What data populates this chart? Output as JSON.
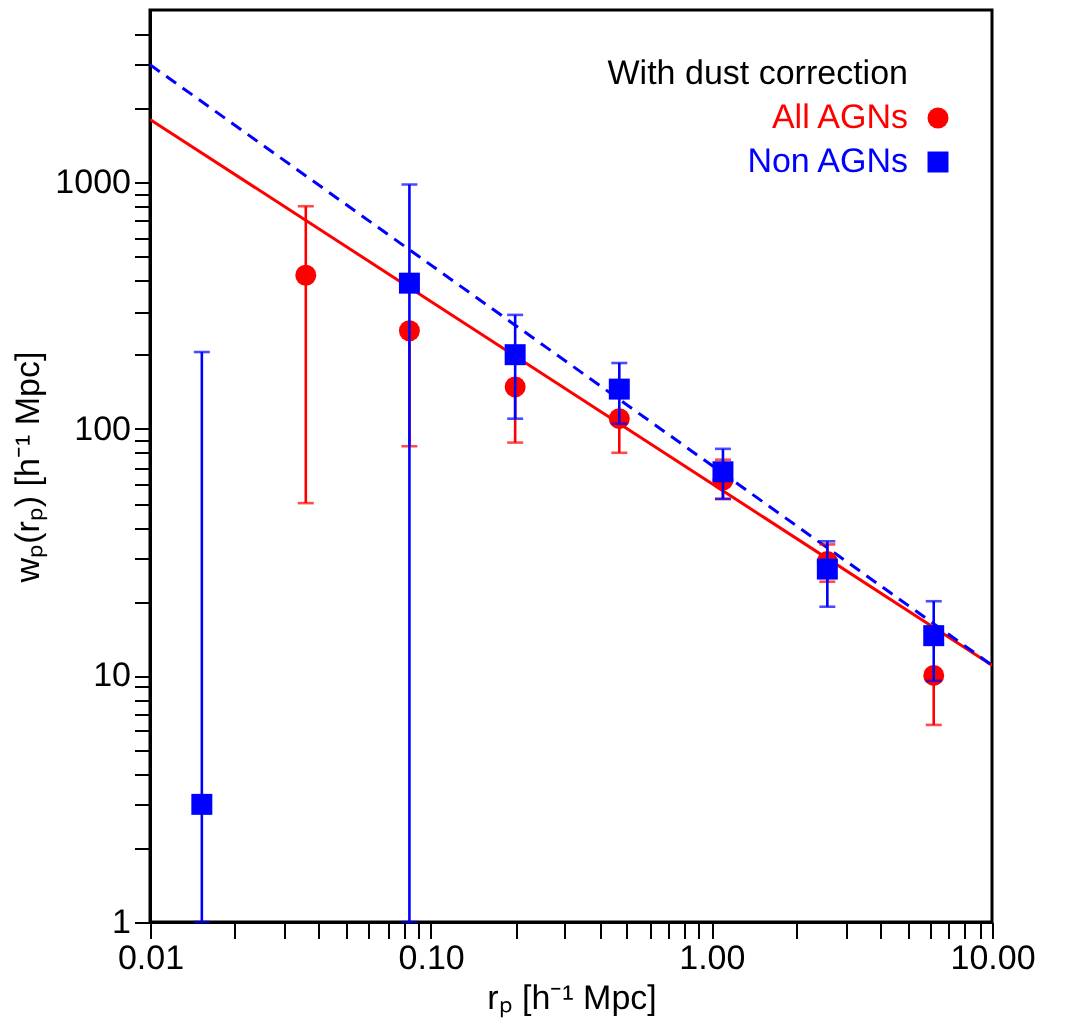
{
  "chart_data": {
    "type": "scatter",
    "xlabel": "rₚ [h⁻¹ Mpc]",
    "ylabel": "wₚ(rₚ) [h⁻¹ Mpc]",
    "legend_title": "With dust correction",
    "legend": "top right",
    "log": "xy",
    "grid": false,
    "xlim": [
      0.01,
      10
    ],
    "ylim": [
      1,
      5000
    ],
    "xticks": [
      {
        "value": 0.01,
        "label": "0.01"
      },
      {
        "value": 0.02,
        "label": null
      },
      {
        "value": 0.03,
        "label": null
      },
      {
        "value": 0.04,
        "label": null
      },
      {
        "value": 0.05,
        "label": null
      },
      {
        "value": 0.06,
        "label": null
      },
      {
        "value": 0.07,
        "label": null
      },
      {
        "value": 0.08,
        "label": null
      },
      {
        "value": 0.09,
        "label": null
      },
      {
        "value": 0.1,
        "label": "0.10"
      },
      {
        "value": 0.2,
        "label": null
      },
      {
        "value": 0.3,
        "label": null
      },
      {
        "value": 0.4,
        "label": null
      },
      {
        "value": 0.5,
        "label": null
      },
      {
        "value": 0.6,
        "label": null
      },
      {
        "value": 0.7,
        "label": null
      },
      {
        "value": 0.8,
        "label": null
      },
      {
        "value": 0.9,
        "label": null
      },
      {
        "value": 1,
        "label": "1.00"
      },
      {
        "value": 2,
        "label": null
      },
      {
        "value": 3,
        "label": null
      },
      {
        "value": 4,
        "label": null
      },
      {
        "value": 5,
        "label": null
      },
      {
        "value": 6,
        "label": null
      },
      {
        "value": 7,
        "label": null
      },
      {
        "value": 8,
        "label": null
      },
      {
        "value": 9,
        "label": null
      },
      {
        "value": 10,
        "label": "10.00"
      }
    ],
    "yticks": [
      1,
      {
        "value": 2,
        "label": null
      },
      {
        "value": 3,
        "label": null
      },
      {
        "value": 4,
        "label": null
      },
      {
        "value": 5,
        "label": null
      },
      {
        "value": 6,
        "label": null
      },
      {
        "value": 7,
        "label": null
      },
      {
        "value": 8,
        "label": null
      },
      {
        "value": 9,
        "label": null
      },
      10,
      {
        "value": 20,
        "label": null
      },
      {
        "value": 30,
        "label": null
      },
      {
        "value": 40,
        "label": null
      },
      {
        "value": 50,
        "label": null
      },
      {
        "value": 60,
        "label": null
      },
      {
        "value": 70,
        "label": null
      },
      {
        "value": 80,
        "label": null
      },
      {
        "value": 90,
        "label": null
      },
      100,
      {
        "value": 200,
        "label": null
      },
      {
        "value": 300,
        "label": null
      },
      {
        "value": 400,
        "label": null
      },
      {
        "value": 500,
        "label": null
      },
      {
        "value": 600,
        "label": null
      },
      {
        "value": 700,
        "label": null
      },
      {
        "value": 800,
        "label": null
      },
      {
        "value": 900,
        "label": null
      },
      1000,
      {
        "value": 2000,
        "label": null
      },
      {
        "value": 3000,
        "label": null
      },
      {
        "value": 4000,
        "label": null
      }
    ],
    "series": [
      {
        "type": "line",
        "color": "#ff0000",
        "line_style": "solid",
        "marker": "none",
        "x": [
          0.01,
          10
        ],
        "values": [
          1800,
          11
        ]
      },
      {
        "type": "line",
        "color": "#0000ff",
        "line_style": "dashed",
        "marker": "none",
        "x": [
          0.01,
          10
        ],
        "values": [
          3000,
          11
        ]
      },
      {
        "name": "All AGNs",
        "color": "#ff0000",
        "marker": "circle",
        "x": [
          0.0359,
          0.084,
          0.2,
          0.47,
          1.1,
          2.59,
          6.2
        ],
        "values": [
          420,
          250,
          148,
          110,
          62,
          29,
          10
        ],
        "errors": [
          [
            50,
            800
          ],
          [
            85,
            250
          ],
          [
            88,
            148
          ],
          [
            80,
            110
          ],
          [
            52,
            75
          ],
          [
            24,
            34
          ],
          [
            6.3,
            10
          ]
        ]
      },
      {
        "name": "Non AGNs",
        "color": "#0000ff",
        "marker": "square",
        "x": [
          0.0153,
          0.0359,
          0.084,
          0.2,
          0.47,
          1.1,
          2.59,
          6.2
        ],
        "values": [
          3,
          null,
          390,
          200,
          145,
          67,
          27,
          14.5
        ],
        "errors": [
          [
            1,
            205
          ],
          null,
          [
            1,
            980
          ],
          [
            110,
            290
          ],
          [
            105,
            185
          ],
          [
            52,
            83
          ],
          [
            19,
            35
          ],
          [
            9.5,
            20
          ]
        ]
      }
    ]
  }
}
